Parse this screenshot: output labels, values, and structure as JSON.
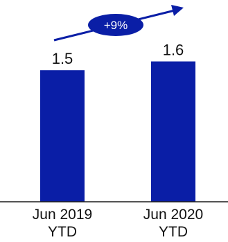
{
  "chart_data": {
    "type": "bar",
    "categories": [
      [
        "Jun 2019",
        "YTD"
      ],
      [
        "Jun 2020",
        "YTD"
      ]
    ],
    "values": [
      1.5,
      1.6
    ],
    "value_labels": [
      "1.5",
      "1.6"
    ],
    "ylim": [
      0,
      2.3
    ],
    "grid": false,
    "annotations": [
      {
        "type": "growth-arrow",
        "text": "+9%"
      }
    ],
    "colors": {
      "bar": "#0a1ea6",
      "badge": "#0a1ea6",
      "badge_text": "#ffffff",
      "axis": "#1a1a1a",
      "text": "#111111"
    }
  }
}
